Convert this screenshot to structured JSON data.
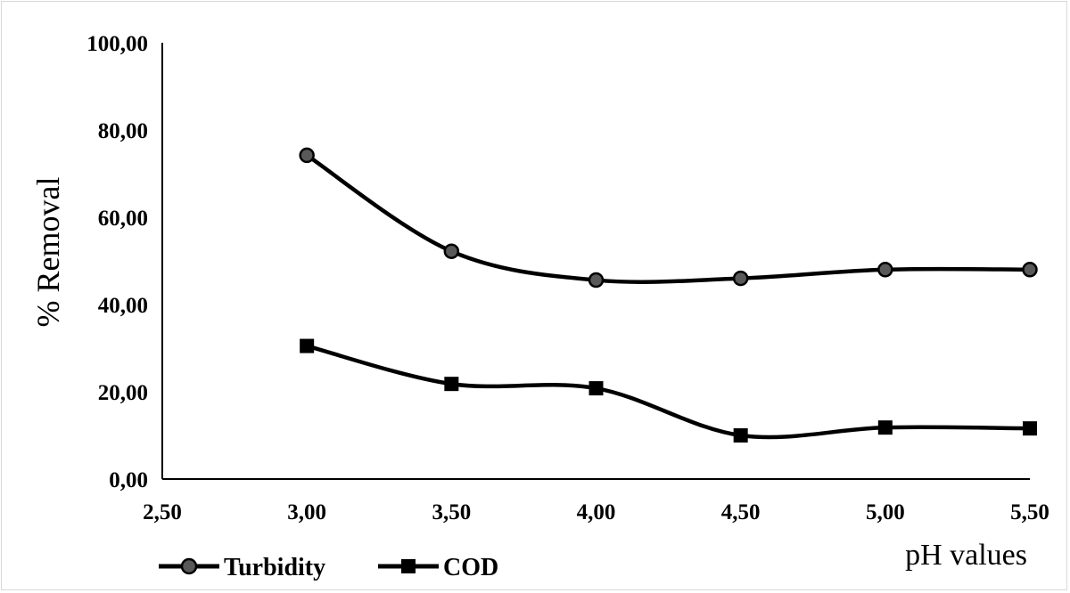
{
  "chart_data": {
    "type": "line",
    "title": "",
    "xlabel": "pH values",
    "ylabel": "% Removal",
    "xlim": [
      2.5,
      5.5
    ],
    "ylim": [
      0,
      100
    ],
    "x_ticks": [
      "2,50",
      "3,00",
      "3,50",
      "4,00",
      "4,50",
      "5,00",
      "5,50"
    ],
    "y_ticks": [
      "0,00",
      "20,00",
      "40,00",
      "60,00",
      "80,00",
      "100,00"
    ],
    "grid": false,
    "legend_position": "bottom-left",
    "x": [
      3.0,
      3.5,
      4.0,
      4.5,
      5.0,
      5.5
    ],
    "series": [
      {
        "name": "Turbidity",
        "marker": "circle",
        "values": [
          74.2,
          52.2,
          45.6,
          46.0,
          48.0,
          48.0
        ]
      },
      {
        "name": "COD",
        "marker": "square",
        "values": [
          30.5,
          21.8,
          20.8,
          10.0,
          11.8,
          11.6
        ]
      }
    ],
    "colors": {
      "line": "#000000",
      "circle_fill": "#595959",
      "square_fill": "#000000",
      "axis": "#000000",
      "border": "#d9d9d9"
    }
  }
}
